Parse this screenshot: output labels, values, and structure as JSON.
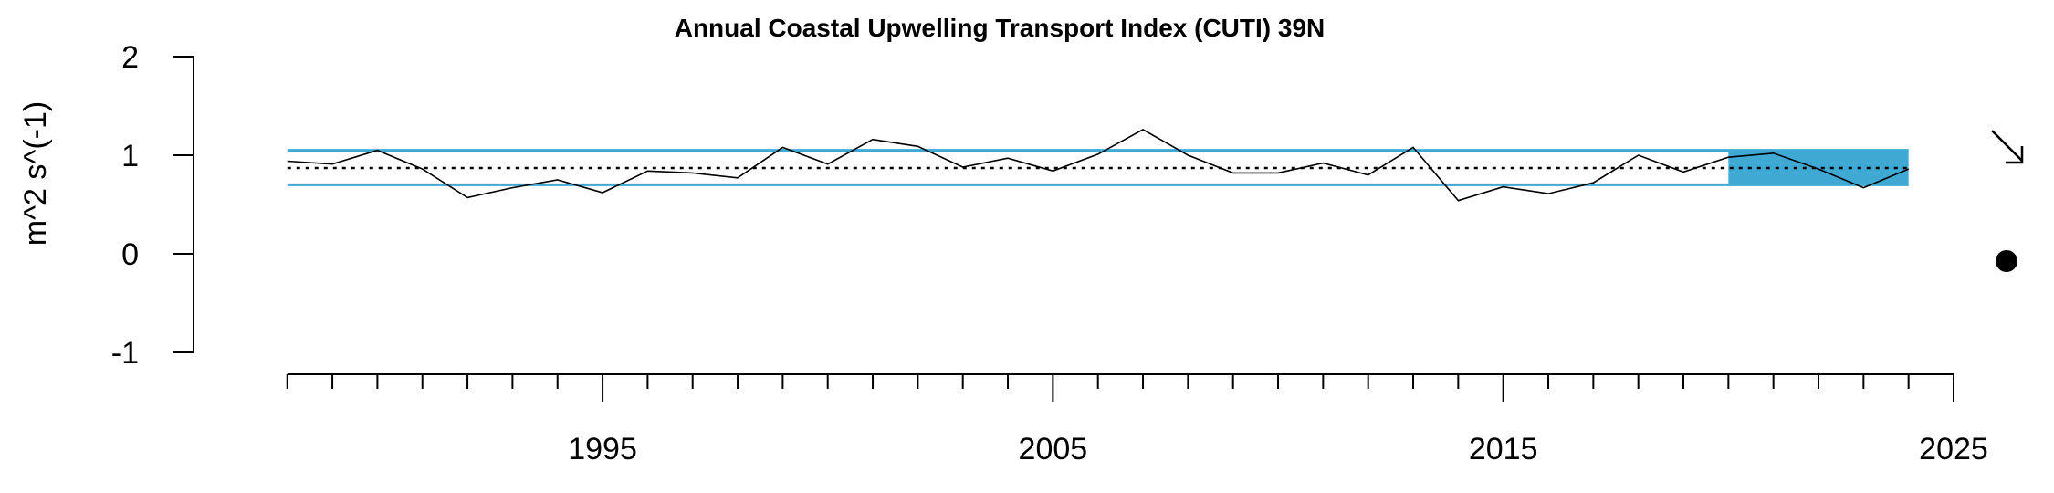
{
  "chart_data": {
    "type": "line",
    "title": "Annual Coastal Upwelling Transport Index (CUTI) 39N",
    "xlabel": "",
    "ylabel": "m^2 s^(-1)",
    "xlim": [
      1987.6,
      2025
    ],
    "ylim": [
      -1,
      2
    ],
    "y_ticks": [
      "-1",
      "0",
      "1",
      "2"
    ],
    "x_major_ticks": [
      "1995",
      "2005",
      "2015",
      "2025"
    ],
    "x_minor_tick_years": [
      1988,
      1989,
      1990,
      1991,
      1992,
      1993,
      1994,
      1995,
      1996,
      1997,
      1998,
      1999,
      2000,
      2001,
      2002,
      2003,
      2004,
      2005,
      2006,
      2007,
      2008,
      2009,
      2010,
      2011,
      2012,
      2013,
      2014,
      2015,
      2016,
      2017,
      2018,
      2019,
      2020,
      2021,
      2022,
      2023,
      2024,
      2025
    ],
    "series": [
      {
        "x": [
          1988,
          1989,
          1990,
          1991,
          1992,
          1993,
          1994,
          1995,
          1996,
          1997,
          1998,
          1999,
          2000,
          2001,
          2002,
          2003,
          2004,
          2005,
          2006,
          2007,
          2008,
          2009,
          2010,
          2011,
          2012,
          2013,
          2014,
          2015,
          2016,
          2017,
          2018,
          2019,
          2020,
          2021,
          2022,
          2023,
          2024
        ],
        "values": [
          0.94,
          0.91,
          1.05,
          0.86,
          0.57,
          0.67,
          0.75,
          0.62,
          0.84,
          0.82,
          0.77,
          1.08,
          0.91,
          1.16,
          1.09,
          0.88,
          0.97,
          0.84,
          1.01,
          1.26,
          1.0,
          0.82,
          0.82,
          0.92,
          0.8,
          1.08,
          0.54,
          0.68,
          0.61,
          0.72,
          1.0,
          0.83,
          0.98,
          1.02,
          0.86,
          0.67,
          0.86
        ]
      }
    ],
    "mean": 0.87,
    "upper_sd": 1.05,
    "lower_sd": 0.7,
    "highlight_range": [
      2020,
      2024
    ],
    "colors": {
      "band": "#3fa9d4",
      "line": "#000000",
      "mean_line": "#000000"
    },
    "trend_indicator": "down-arrow",
    "mean_indicator": "filled-circle"
  }
}
